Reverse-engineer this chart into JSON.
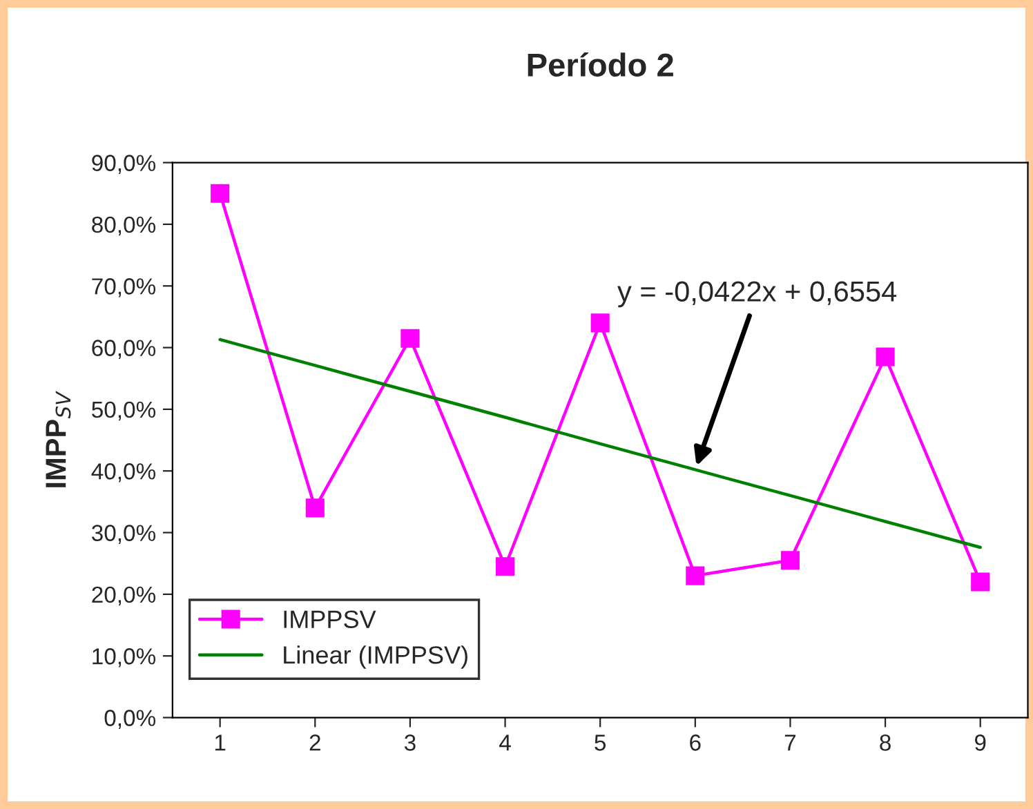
{
  "chart_data": {
    "type": "line",
    "title": "Período 2",
    "ylabel": "IMPP$_{SV}$",
    "categories": [
      "1",
      "2",
      "3",
      "4",
      "5",
      "6",
      "7",
      "8",
      "9"
    ],
    "series": [
      {
        "name": "IMPPSV",
        "color": "#ff00ff",
        "values": [
          85,
          34,
          61.5,
          24.5,
          64,
          23,
          25.5,
          58.5,
          22
        ],
        "marker": "square"
      },
      {
        "name": "Linear (IMPPSV)",
        "color": "#008000",
        "values": [
          61.3,
          57.1,
          52.9,
          48.7,
          44.4,
          40.2,
          36.0,
          31.8,
          27.6
        ],
        "marker": "none"
      }
    ],
    "ylim": [
      0,
      90
    ],
    "yticks": [
      {
        "value": 0,
        "label": "0,0%"
      },
      {
        "value": 10,
        "label": "10,0%"
      },
      {
        "value": 20,
        "label": "20,0%"
      },
      {
        "value": 30,
        "label": "30,0%"
      },
      {
        "value": 40,
        "label": "40,0%"
      },
      {
        "value": 50,
        "label": "50,0%"
      },
      {
        "value": 60,
        "label": "60,0%"
      },
      {
        "value": 70,
        "label": "70,0%"
      },
      {
        "value": 80,
        "label": "80,0%"
      },
      {
        "value": 90,
        "label": "90,0%"
      }
    ],
    "annotations": [
      {
        "text": "y = -0,0422x + 0,6554",
        "x": "6",
        "y": 40.2
      }
    ],
    "legend": "bottom left",
    "grid": false
  }
}
